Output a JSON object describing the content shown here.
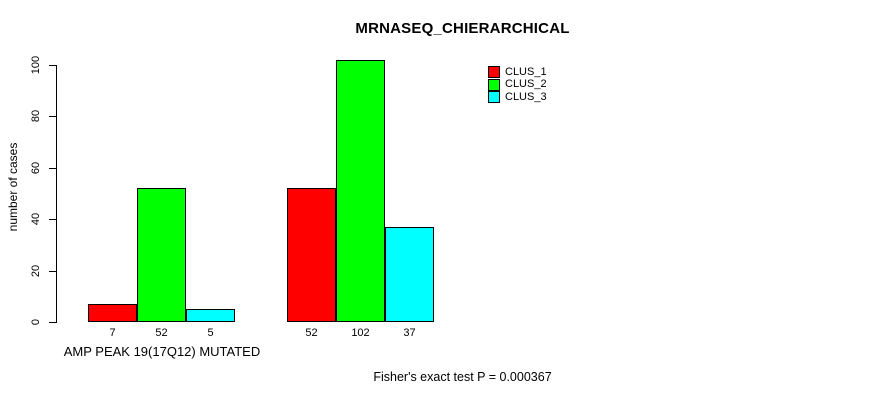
{
  "chart_data": {
    "type": "bar",
    "title": "MRNASEQ_CHIERARCHICAL",
    "ylabel": "number of cases",
    "xlabel": "AMP PEAK 19(17Q12) MUTATED",
    "ylim": [
      0,
      110
    ],
    "yticks": [
      0,
      20,
      40,
      60,
      80,
      100
    ],
    "grid": false,
    "legend_position": "top-right",
    "categories": [
      "AMP PEAK 19(17Q12) MUTATED",
      ""
    ],
    "series": [
      {
        "name": "CLUS_1",
        "color": "#ff0000",
        "values": [
          7,
          52
        ]
      },
      {
        "name": "CLUS_2",
        "color": "#00ff00",
        "values": [
          52,
          102
        ]
      },
      {
        "name": "CLUS_3",
        "color": "#00ffff",
        "values": [
          5,
          37
        ]
      }
    ],
    "bar_value_labels": true,
    "annotation": "Fisher's exact test P = 0.000367"
  }
}
